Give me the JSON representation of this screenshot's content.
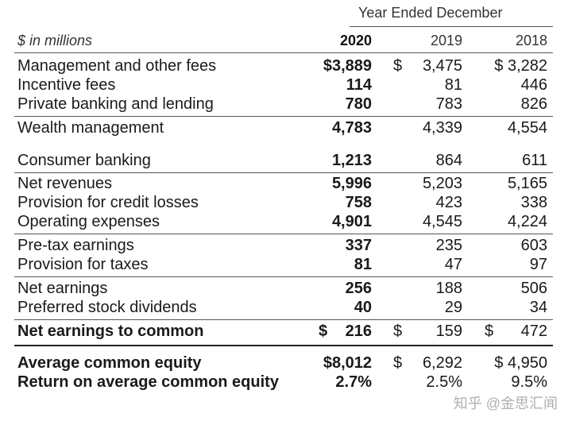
{
  "header": {
    "period": "Year Ended December",
    "unit": "$ in millions",
    "years": [
      "2020",
      "2019",
      "2018"
    ]
  },
  "rows": [
    {
      "label": "Management and other fees",
      "v2020": "$3,889",
      "d2019": "$",
      "v2019": "3,475",
      "d2018": "",
      "v2018": "$ 3,282"
    },
    {
      "label": "Incentive fees",
      "v2020": "114",
      "v2019": "81",
      "v2018": "446"
    },
    {
      "label": "Private banking and lending",
      "v2020": "780",
      "v2019": "783",
      "v2018": "826"
    },
    {
      "label": "Wealth management",
      "v2020": "4,783",
      "v2019": "4,339",
      "v2018": "4,554"
    },
    {
      "label": "Consumer banking",
      "v2020": "1,213",
      "v2019": "864",
      "v2018": "611"
    },
    {
      "label": "Net revenues",
      "v2020": "5,996",
      "v2019": "5,203",
      "v2018": "5,165"
    },
    {
      "label": "Provision for credit losses",
      "v2020": "758",
      "v2019": "423",
      "v2018": "338"
    },
    {
      "label": "Operating expenses",
      "v2020": "4,901",
      "v2019": "4,545",
      "v2018": "4,224"
    },
    {
      "label": "Pre-tax earnings",
      "v2020": "337",
      "v2019": "235",
      "v2018": "603"
    },
    {
      "label": "Provision for taxes",
      "v2020": "81",
      "v2019": "47",
      "v2018": "97"
    },
    {
      "label": "Net earnings",
      "v2020": "256",
      "v2019": "188",
      "v2018": "506"
    },
    {
      "label": "Preferred stock dividends",
      "v2020": "40",
      "v2019": "29",
      "v2018": "34"
    },
    {
      "label": "Net earnings to common",
      "d2020": "$",
      "v2020": "216",
      "d2019": "$",
      "v2019": "159",
      "d2018": "$",
      "v2018": "472"
    },
    {
      "label": "Average common equity",
      "v2020": "$8,012",
      "d2019": "$",
      "v2019": "6,292",
      "v2018": "$ 4,950"
    },
    {
      "label": "Return on average common equity",
      "v2020": "2.7%",
      "v2019": "2.5%",
      "v2018": "9.5%"
    }
  ],
  "watermark": "知乎 @金思汇闻"
}
